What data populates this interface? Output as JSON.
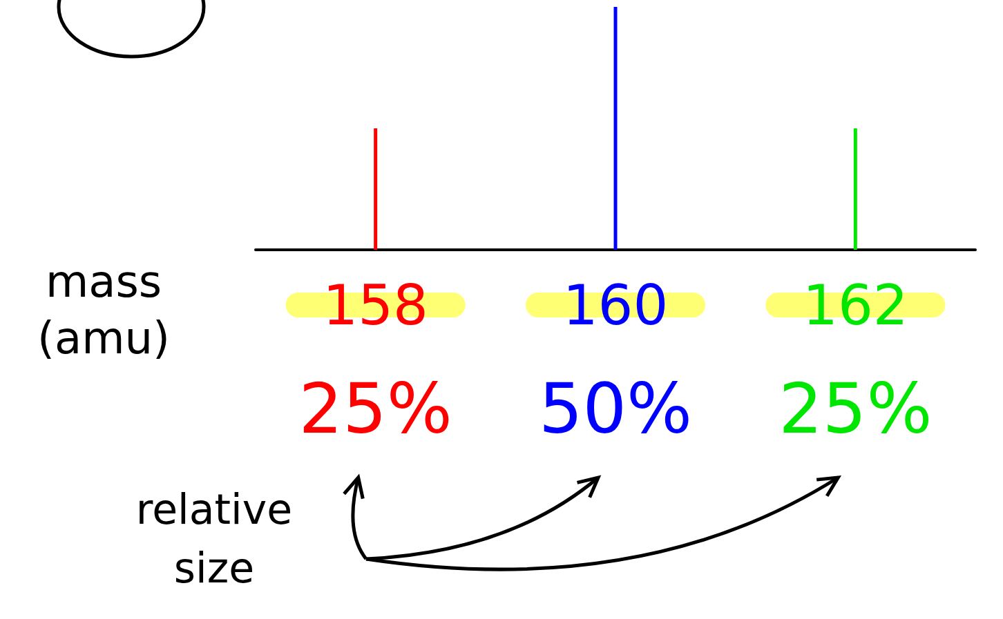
{
  "chart_data": {
    "type": "bar",
    "categories": [
      "158",
      "160",
      "162"
    ],
    "values": [
      25,
      50,
      25
    ],
    "value_labels": [
      "25%",
      "50%",
      "25%"
    ],
    "colors": [
      "#ff0000",
      "#0000ff",
      "#00e600"
    ],
    "x_label": "mass (amu)",
    "annotation": "relative size",
    "ylim": [
      0,
      50
    ],
    "data_labels": true,
    "tick_labels": "x",
    "grid": false
  }
}
